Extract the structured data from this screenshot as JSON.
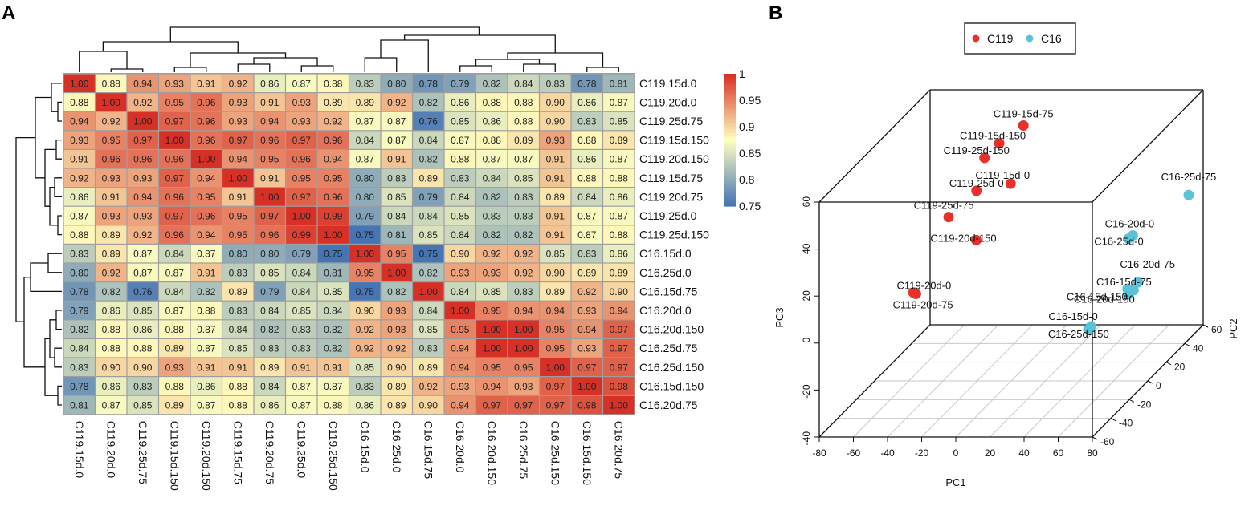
{
  "panels": {
    "a": "A",
    "b": "B"
  },
  "chart_data": [
    {
      "type": "heatmap",
      "title": "",
      "samples": [
        "C119.15d.0",
        "C119.20d.0",
        "C119.25d.75",
        "C119.15d.150",
        "C119.20d.150",
        "C119.15d.75",
        "C119.20d.75",
        "C119.25d.0",
        "C119.25d.150",
        "C16.15d.0",
        "C16.25d.0",
        "C16.15d.75",
        "C16.20d.0",
        "C16.20d.150",
        "C16.25d.75",
        "C16.25d.150",
        "C16.15d.150",
        "C16.20d.75"
      ],
      "values": [
        [
          "1.00",
          "0.88",
          "0.94",
          "0.93",
          "0.91",
          "0.92",
          "0.86",
          "0.87",
          "0.88",
          "0.83",
          "0.80",
          "0.78",
          "0.79",
          "0.82",
          "0.84",
          "0.83",
          "0.78",
          "0.81"
        ],
        [
          "0.88",
          "1.00",
          "0.92",
          "0.95",
          "0.96",
          "0.93",
          "0.91",
          "0.93",
          "0.89",
          "0.89",
          "0.92",
          "0.82",
          "0.86",
          "0.88",
          "0.88",
          "0.90",
          "0.86",
          "0.87"
        ],
        [
          "0.94",
          "0.92",
          "1.00",
          "0.97",
          "0.96",
          "0.93",
          "0.94",
          "0.93",
          "0.92",
          "0.87",
          "0.87",
          "0.76",
          "0.85",
          "0.86",
          "0.88",
          "0.90",
          "0.83",
          "0.85"
        ],
        [
          "0.93",
          "0.95",
          "0.97",
          "1.00",
          "0.96",
          "0.97",
          "0.96",
          "0.97",
          "0.96",
          "0.84",
          "0.87",
          "0.84",
          "0.87",
          "0.88",
          "0.89",
          "0.93",
          "0.88",
          "0.89"
        ],
        [
          "0.91",
          "0.96",
          "0.96",
          "0.96",
          "1.00",
          "0.94",
          "0.95",
          "0.96",
          "0.94",
          "0.87",
          "0.91",
          "0.82",
          "0.88",
          "0.87",
          "0.87",
          "0.91",
          "0.86",
          "0.87"
        ],
        [
          "0.92",
          "0.93",
          "0.93",
          "0.97",
          "0.94",
          "1.00",
          "0.91",
          "0.95",
          "0.95",
          "0.80",
          "0.83",
          "0.89",
          "0.83",
          "0.84",
          "0.85",
          "0.91",
          "0.88",
          "0.88"
        ],
        [
          "0.86",
          "0.91",
          "0.94",
          "0.96",
          "0.95",
          "0.91",
          "1.00",
          "0.97",
          "0.96",
          "0.80",
          "0.85",
          "0.79",
          "0.84",
          "0.82",
          "0.83",
          "0.89",
          "0.84",
          "0.86"
        ],
        [
          "0.87",
          "0.93",
          "0.93",
          "0.97",
          "0.96",
          "0.95",
          "0.97",
          "1.00",
          "0.99",
          "0.79",
          "0.84",
          "0.84",
          "0.85",
          "0.83",
          "0.83",
          "0.91",
          "0.87",
          "0.87"
        ],
        [
          "0.88",
          "0.89",
          "0.92",
          "0.96",
          "0.94",
          "0.95",
          "0.96",
          "0.99",
          "1.00",
          "0.75",
          "0.81",
          "0.85",
          "0.84",
          "0.82",
          "0.82",
          "0.91",
          "0.87",
          "0.88"
        ],
        [
          "0.83",
          "0.89",
          "0.87",
          "0.84",
          "0.87",
          "0.80",
          "0.80",
          "0.79",
          "0.75",
          "1.00",
          "0.95",
          "0.75",
          "0.90",
          "0.92",
          "0.92",
          "0.85",
          "0.83",
          "0.86"
        ],
        [
          "0.80",
          "0.92",
          "0.87",
          "0.87",
          "0.91",
          "0.83",
          "0.85",
          "0.84",
          "0.81",
          "0.95",
          "1.00",
          "0.82",
          "0.93",
          "0.93",
          "0.92",
          "0.90",
          "0.89",
          "0.89"
        ],
        [
          "0.78",
          "0.82",
          "0.76",
          "0.84",
          "0.82",
          "0.89",
          "0.79",
          "0.84",
          "0.85",
          "0.75",
          "0.82",
          "1.00",
          "0.84",
          "0.85",
          "0.83",
          "0.89",
          "0.92",
          "0.90"
        ],
        [
          "0.79",
          "0.86",
          "0.85",
          "0.87",
          "0.88",
          "0.83",
          "0.84",
          "0.85",
          "0.84",
          "0.90",
          "0.93",
          "0.84",
          "1.00",
          "0.95",
          "0.94",
          "0.94",
          "0.93",
          "0.94"
        ],
        [
          "0.82",
          "0.88",
          "0.86",
          "0.88",
          "0.87",
          "0.84",
          "0.82",
          "0.83",
          "0.82",
          "0.92",
          "0.93",
          "0.85",
          "0.95",
          "1.00",
          "1.00",
          "0.95",
          "0.94",
          "0.97"
        ],
        [
          "0.84",
          "0.88",
          "0.88",
          "0.89",
          "0.87",
          "0.85",
          "0.83",
          "0.83",
          "0.82",
          "0.92",
          "0.92",
          "0.83",
          "0.94",
          "1.00",
          "1.00",
          "0.95",
          "0.93",
          "0.97"
        ],
        [
          "0.83",
          "0.90",
          "0.90",
          "0.93",
          "0.91",
          "0.91",
          "0.89",
          "0.91",
          "0.91",
          "0.85",
          "0.90",
          "0.89",
          "0.94",
          "0.95",
          "0.95",
          "1.00",
          "0.97",
          "0.97"
        ],
        [
          "0.78",
          "0.86",
          "0.83",
          "0.88",
          "0.86",
          "0.88",
          "0.84",
          "0.87",
          "0.87",
          "0.83",
          "0.89",
          "0.92",
          "0.93",
          "0.94",
          "0.93",
          "0.97",
          "1.00",
          "0.98"
        ],
        [
          "0.81",
          "0.87",
          "0.85",
          "0.89",
          "0.87",
          "0.88",
          "0.86",
          "0.87",
          "0.88",
          "0.86",
          "0.89",
          "0.90",
          "0.94",
          "0.97",
          "0.97",
          "0.97",
          "0.98",
          "1.00"
        ]
      ],
      "colorbar": {
        "range": [
          0.75,
          1
        ],
        "ticks": [
          "1",
          "0.95",
          "0.9",
          "0.85",
          "0.8",
          "0.75"
        ]
      },
      "colors": {
        "low": "#4575b4",
        "mid": "#ffffbf",
        "high": "#d73027"
      }
    },
    {
      "type": "scatter",
      "subtype": "3d-pca",
      "xlabel": "PC1",
      "ylabel": "PC2",
      "zlabel": "PC3",
      "xlim": [
        -80,
        80
      ],
      "ylim": [
        -60,
        60
      ],
      "zlim": [
        -40,
        60
      ],
      "x_ticks": [
        "-80",
        "-60",
        "-40",
        "-20",
        "0",
        "20",
        "40",
        "60",
        "80"
      ],
      "y_ticks": [
        "-60",
        "-40",
        "-20",
        "0",
        "20",
        "40",
        "60"
      ],
      "z_ticks": [
        "-40",
        "-20",
        "0",
        "20",
        "40",
        "60"
      ],
      "legend": [
        {
          "name": "C119",
          "color": "#e8312a"
        },
        {
          "name": "C16",
          "color": "#5bc3d8"
        }
      ],
      "points": [
        {
          "label": "C119-15d-75",
          "group": "C119",
          "x": -21,
          "y": 52,
          "z": 48
        },
        {
          "label": "C119-15d-150",
          "group": "C119",
          "x": -33,
          "y": 48,
          "z": 42
        },
        {
          "label": "C119-25d-150",
          "group": "C119",
          "x": -40,
          "y": 45,
          "z": 37
        },
        {
          "label": "C119-15d-0",
          "group": "C119",
          "x": -22,
          "y": 40,
          "z": 28
        },
        {
          "label": "C119-25d-0",
          "group": "C119",
          "x": -42,
          "y": 40,
          "z": 25
        },
        {
          "label": "C119-25d-75",
          "group": "C119",
          "x": -54,
          "y": 32,
          "z": 17
        },
        {
          "label": "C119-20d-150",
          "group": "C119",
          "x": -34,
          "y": 25,
          "z": 10
        },
        {
          "label": "C119-20d-0",
          "group": "C119",
          "x": -45,
          "y": -20,
          "z": 5
        },
        {
          "label": "C119-20d-75",
          "group": "C119",
          "x": -46,
          "y": -21,
          "z": 6
        },
        {
          "label": "C16-25d-75",
          "group": "C16",
          "x": 78,
          "y": 48,
          "z": 20
        },
        {
          "label": "C16-20d-0",
          "group": "C16",
          "x": 55,
          "y": 30,
          "z": 10
        },
        {
          "label": "C16-25d-0",
          "group": "C16",
          "x": 53,
          "y": 29,
          "z": 9
        },
        {
          "label": "C16-20d-75",
          "group": "C16",
          "x": 58,
          "y": 30,
          "z": -10
        },
        {
          "label": "C16-15d-75",
          "group": "C16",
          "x": 56,
          "y": 29,
          "z": -13
        },
        {
          "label": "C16-15d-150",
          "group": "C16",
          "x": 53,
          "y": 28,
          "z": -12
        },
        {
          "label": "C16-20d-150",
          "group": "C16",
          "x": 54,
          "y": 27,
          "z": -14
        },
        {
          "label": "C16-15d-0",
          "group": "C16",
          "x": 45,
          "y": 3,
          "z": -18
        },
        {
          "label": "C16-25d-150",
          "group": "C16",
          "x": 44,
          "y": 2,
          "z": -19
        }
      ]
    }
  ]
}
